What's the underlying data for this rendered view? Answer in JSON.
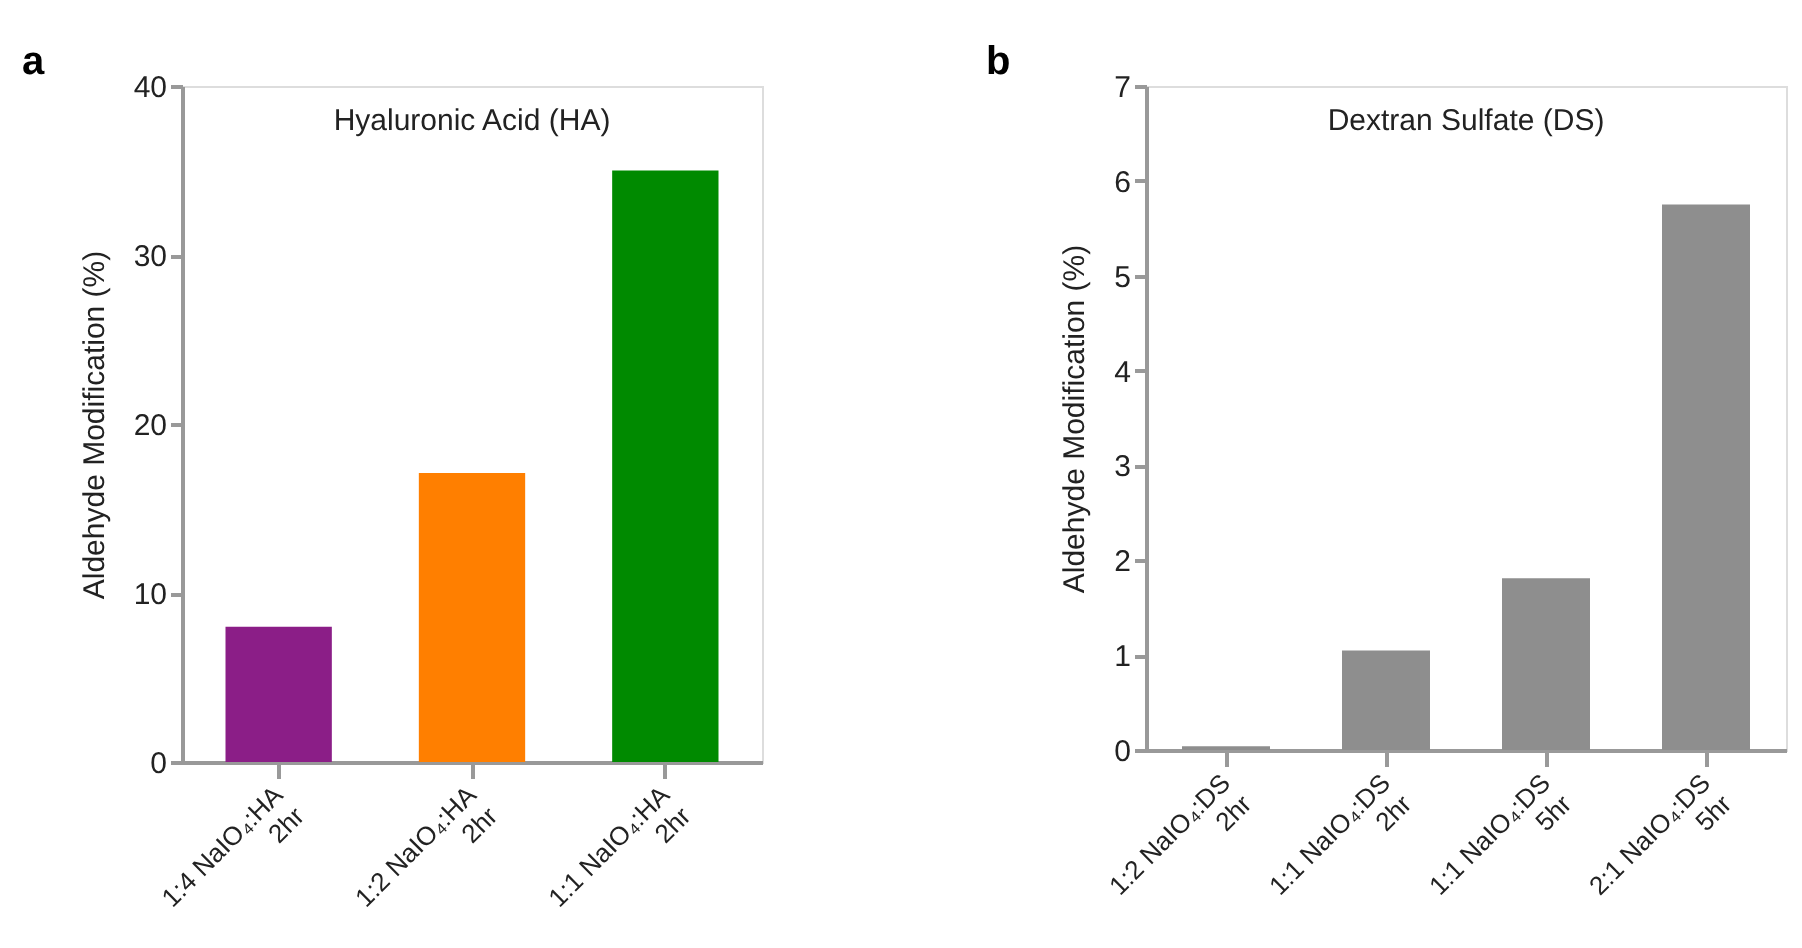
{
  "chart_data": [
    {
      "type": "bar",
      "title": "Hyaluronic Acid (HA)",
      "ylabel": "Aldehyde Modification (%)",
      "annotations": [
        "a"
      ],
      "categories": [
        "1:4 NaIO₄:HA\n2hr",
        "1:2 NaIO₄:HA\n2hr",
        "1:1 NaIO₄:HA\n2hr"
      ],
      "values": [
        8.0,
        17.1,
        35.0
      ],
      "colors": [
        "#8b1e87",
        "#ff7f00",
        "#008a00"
      ],
      "ylim": [
        0,
        40
      ],
      "yticks": [
        0,
        10,
        20,
        30,
        40
      ],
      "grid": false
    },
    {
      "type": "bar",
      "title": "Dextran Sulfate (DS)",
      "ylabel": "Aldehyde Modification (%)",
      "annotations": [
        "b"
      ],
      "categories": [
        "1:2 NaIO₄:DS\n2hr",
        "1:1 NaIO₄:DS\n2hr",
        "1:1 NaIO₄:DS\n5hr",
        "2:1 NaIO₄:DS\n5hr"
      ],
      "values": [
        0.04,
        1.05,
        1.81,
        5.75
      ],
      "colors": [
        "#8e8e8e",
        "#8e8e8e",
        "#8e8e8e",
        "#8e8e8e"
      ],
      "ylim": [
        0,
        7
      ],
      "yticks": [
        0,
        1,
        2,
        3,
        4,
        5,
        6,
        7
      ],
      "grid": false
    }
  ]
}
